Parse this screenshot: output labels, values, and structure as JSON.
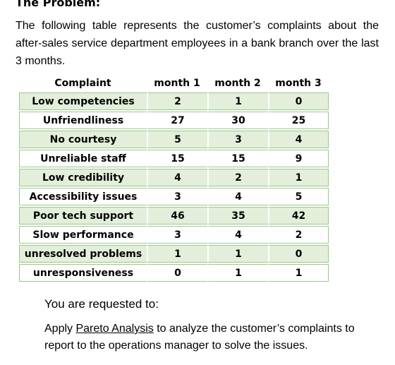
{
  "heading": "The Problem:",
  "intro": "The following table represents the customer’s complaints about the after-sales service department employees in a bank branch over the last 3 months.",
  "table": {
    "headers": [
      "Complaint",
      "month 1",
      "month 2",
      "month 3"
    ],
    "rows": [
      {
        "complaint": "Low competencies",
        "m1": "2",
        "m2": "1",
        "m3": "0",
        "shaded": true
      },
      {
        "complaint": "Unfriendliness",
        "m1": "27",
        "m2": "30",
        "m3": "25",
        "shaded": false
      },
      {
        "complaint": "No courtesy",
        "m1": "5",
        "m2": "3",
        "m3": "4",
        "shaded": true
      },
      {
        "complaint": "Unreliable staff",
        "m1": "15",
        "m2": "15",
        "m3": "9",
        "shaded": false
      },
      {
        "complaint": "Low credibility",
        "m1": "4",
        "m2": "2",
        "m3": "1",
        "shaded": true
      },
      {
        "complaint": "Accessibility issues",
        "m1": "3",
        "m2": "4",
        "m3": "5",
        "shaded": false
      },
      {
        "complaint": "Poor tech support",
        "m1": "46",
        "m2": "35",
        "m3": "42",
        "shaded": true
      },
      {
        "complaint": "Slow performance",
        "m1": "3",
        "m2": "4",
        "m3": "2",
        "shaded": false
      },
      {
        "complaint": "unresolved problems",
        "m1": "1",
        "m2": "1",
        "m3": "0",
        "shaded": true
      },
      {
        "complaint": "unresponsiveness",
        "m1": "0",
        "m2": "1",
        "m3": "1",
        "shaded": false
      }
    ]
  },
  "request_label": "You are requested to:",
  "instruction": {
    "before": "Apply ",
    "link": "Pareto Analysis",
    "after": " to analyze the customer’s complaints to report to the operations manager to solve the issues."
  },
  "colors": {
    "shaded_row": "#e3efda",
    "cell_border": "#9bc78c"
  }
}
